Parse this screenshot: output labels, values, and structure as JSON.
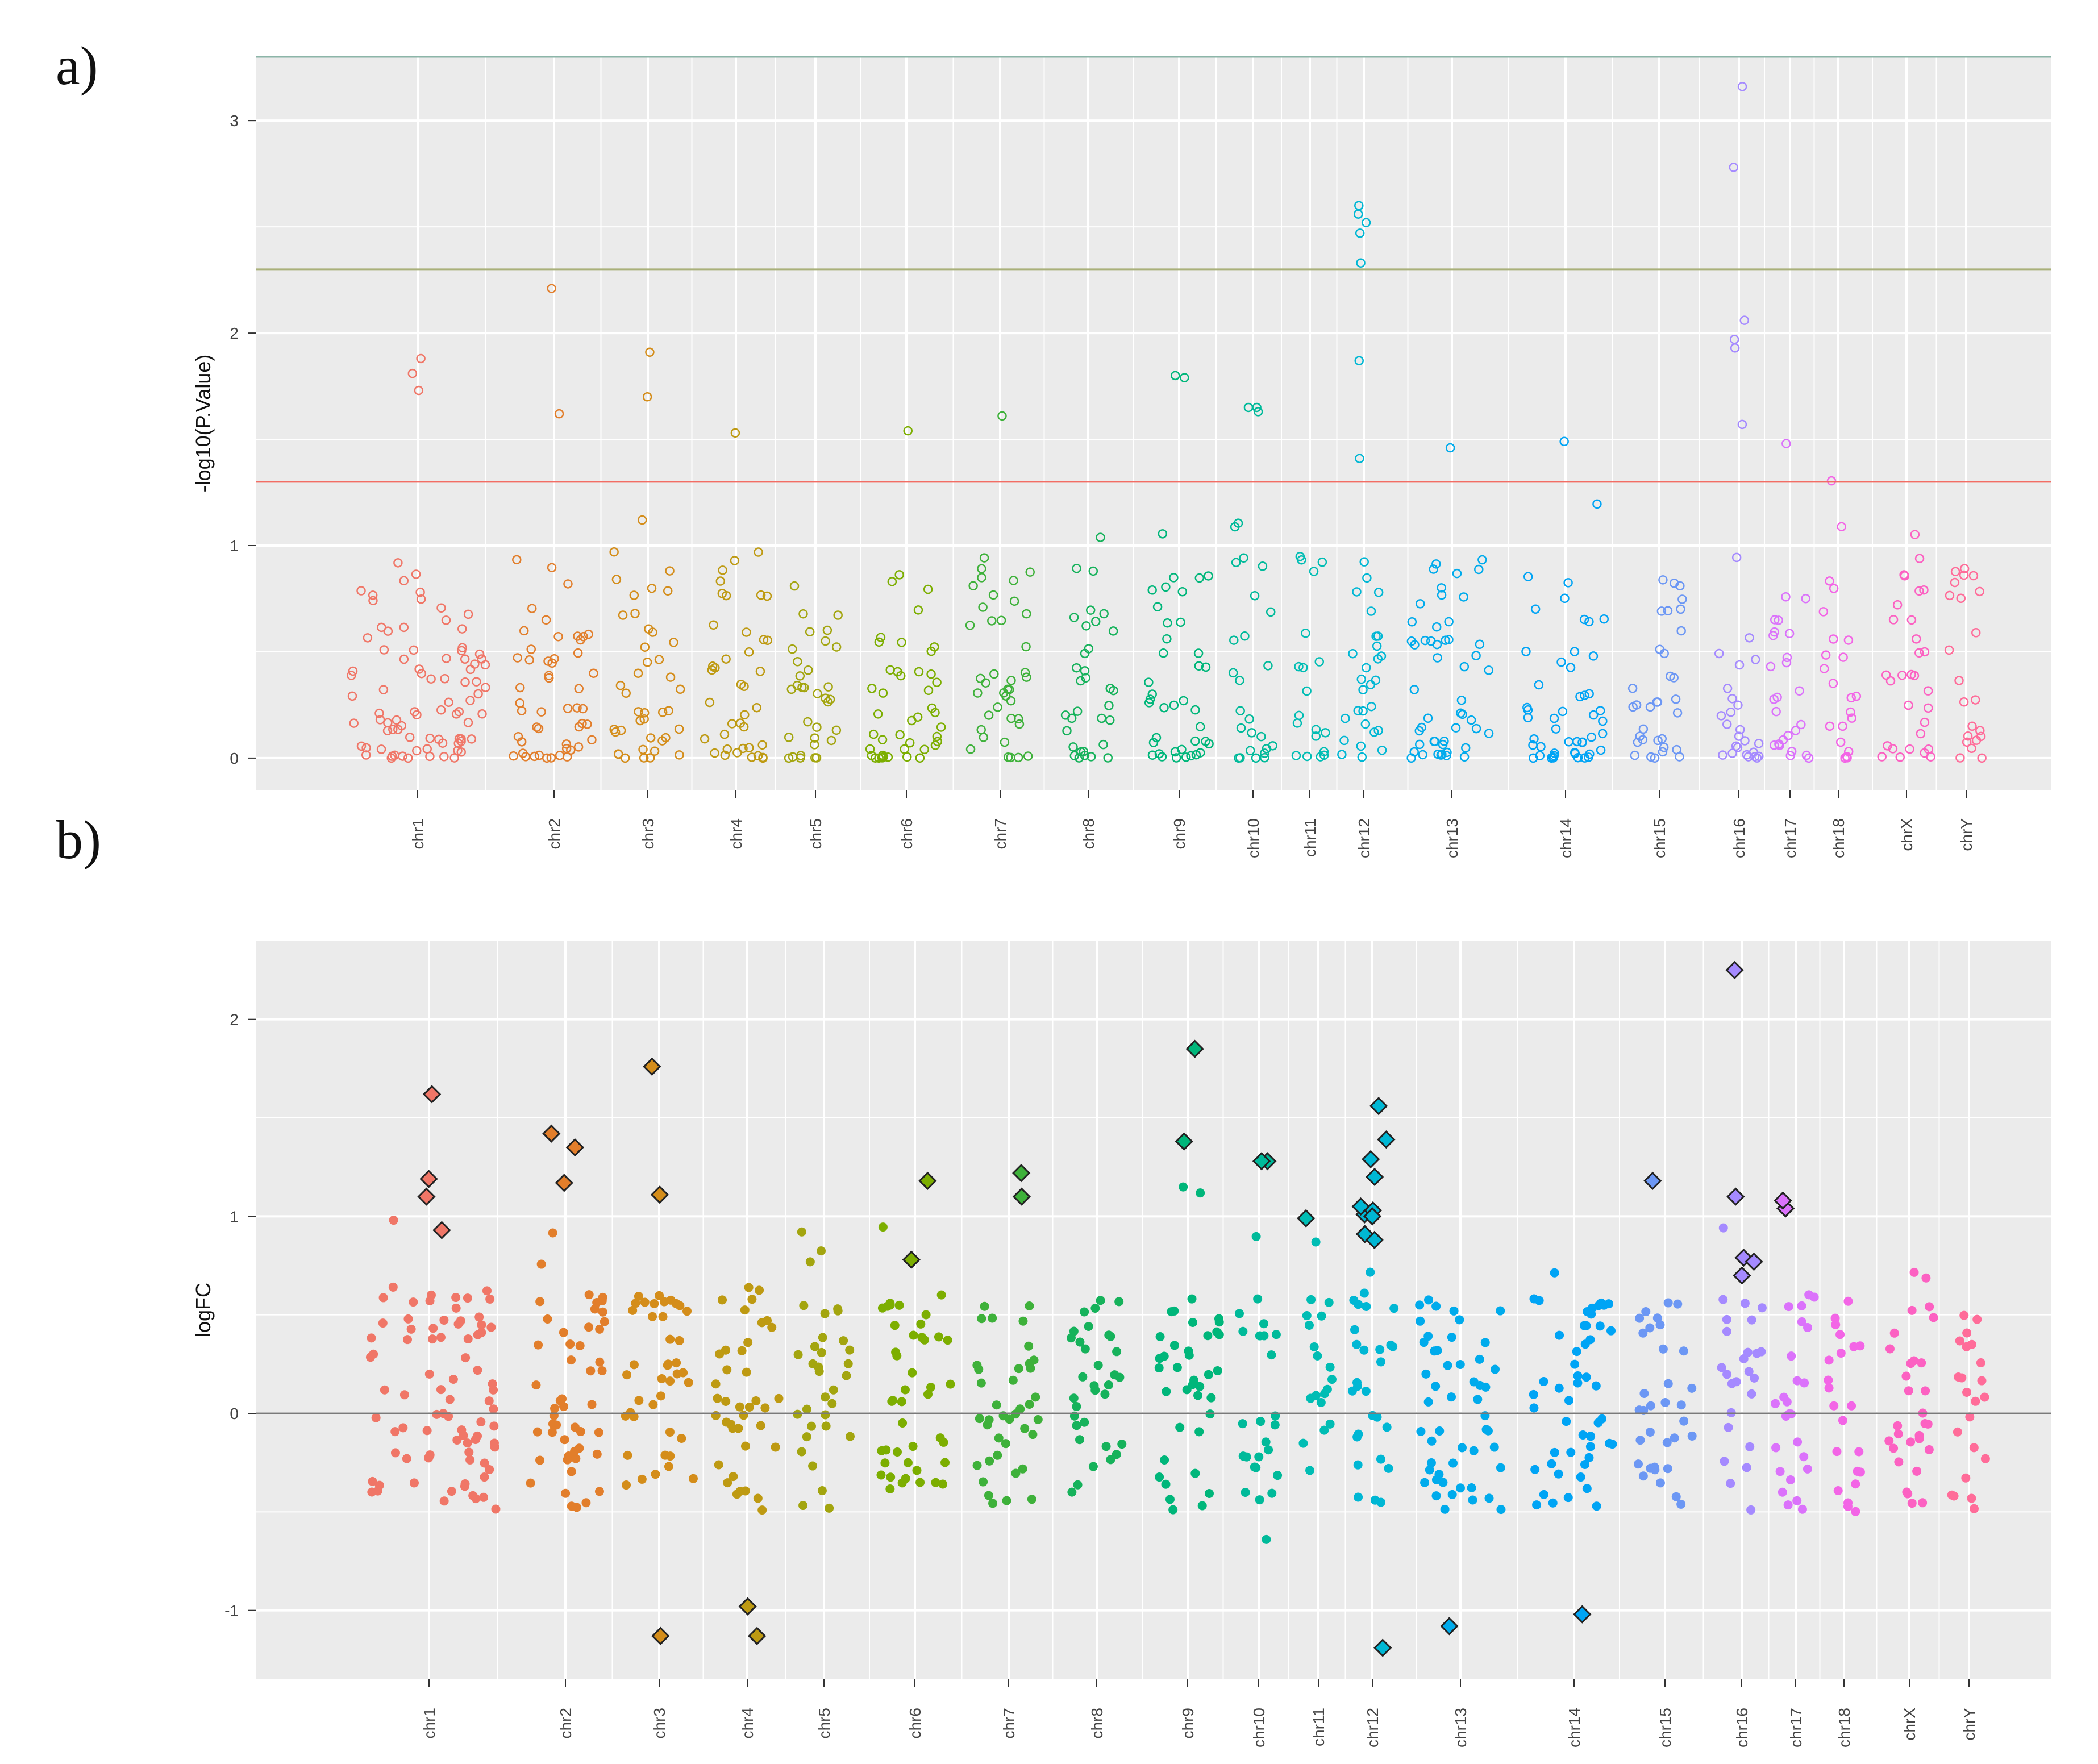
{
  "figure": {
    "panel_a_label": "a)",
    "panel_b_label": "b)"
  },
  "palette": {
    "chr1": "#F07667",
    "chr2": "#E27E2B",
    "chr3": "#D48D1A",
    "chr4": "#BE9A12",
    "chr5": "#A3A50F",
    "chr6": "#7CAE00",
    "chr7": "#3EB13A",
    "chr8": "#16B25B",
    "chr9": "#00B67A",
    "chr10": "#00BA9A",
    "chr11": "#00BDB4",
    "chr12": "#00B7D4",
    "chr13": "#00ABEC",
    "chr14": "#00A4F5",
    "chr15": "#6C97F4",
    "chr16": "#A58AFF",
    "chr17": "#DB72FB",
    "chr18": "#F365E6",
    "chrX": "#FC61C2",
    "chrY": "#FF6C99",
    "panel_background": "#EBEBEB",
    "gridline": "#FFFFFF",
    "threshold_red": "#F26D64",
    "threshold_olive": "#A9B07A",
    "threshold_teal": "#8CB5A8",
    "zero_line": "#7A7A7A"
  },
  "chart_data": [
    {
      "panel": "a)",
      "type": "scatter",
      "marker": "open-circle",
      "ylabel": "-log10(P.Value)",
      "xlabel": "",
      "ylim": [
        -0.15,
        3.3
      ],
      "yticks": [
        "0",
        "1",
        "2",
        "3"
      ],
      "grid": true,
      "legend": "none",
      "chromosomes": [
        "chr1",
        "chr2",
        "chr3",
        "chr4",
        "chr5",
        "chr6",
        "chr7",
        "chr8",
        "chr9",
        "chr10",
        "chr11",
        "chr12",
        "chr13",
        "chr14",
        "chr15",
        "chr16",
        "chr17",
        "chr18",
        "chrX",
        "chrY"
      ],
      "hlines": [
        {
          "y": 1.3,
          "color": "#F26D64"
        },
        {
          "y": 2.3,
          "color": "#A9B07A"
        },
        {
          "y": 3.3,
          "color": "#8CB5A8"
        }
      ],
      "highlight_points": [
        {
          "chr": "chr16",
          "y": 3.16
        },
        {
          "chr": "chr16",
          "y": 2.78
        },
        {
          "chr": "chr16",
          "y": 2.06
        },
        {
          "chr": "chr16",
          "y": 1.97
        },
        {
          "chr": "chr16",
          "y": 1.93
        },
        {
          "chr": "chr16",
          "y": 1.57
        },
        {
          "chr": "chr12",
          "y": 2.6
        },
        {
          "chr": "chr12",
          "y": 2.56
        },
        {
          "chr": "chr12",
          "y": 2.52
        },
        {
          "chr": "chr12",
          "y": 2.47
        },
        {
          "chr": "chr12",
          "y": 2.33
        },
        {
          "chr": "chr12",
          "y": 1.87
        },
        {
          "chr": "chr2",
          "y": 2.21
        },
        {
          "chr": "chr3",
          "y": 1.91
        },
        {
          "chr": "chr1",
          "y": 1.88
        },
        {
          "chr": "chr1",
          "y": 1.81
        },
        {
          "chr": "chr1",
          "y": 1.73
        },
        {
          "chr": "chr9",
          "y": 1.8
        },
        {
          "chr": "chr9",
          "y": 1.79
        },
        {
          "chr": "chr3",
          "y": 1.7
        },
        {
          "chr": "chr10",
          "y": 1.65
        },
        {
          "chr": "chr10",
          "y": 1.65
        },
        {
          "chr": "chr10",
          "y": 1.63
        },
        {
          "chr": "chr2",
          "y": 1.62
        },
        {
          "chr": "chr7",
          "y": 1.61
        },
        {
          "chr": "chr6",
          "y": 1.54
        },
        {
          "chr": "chr4",
          "y": 1.53
        },
        {
          "chr": "chr14",
          "y": 1.49
        },
        {
          "chr": "chr17",
          "y": 1.48
        },
        {
          "chr": "chr13",
          "y": 1.46
        },
        {
          "chr": "chr12",
          "y": 1.41
        }
      ]
    },
    {
      "panel": "b)",
      "type": "scatter",
      "marker": "filled-circle",
      "ylabel": "logFC",
      "xlabel": "",
      "ylim": [
        -1.35,
        2.4
      ],
      "yticks": [
        "-1",
        "0",
        "1",
        "2"
      ],
      "grid": true,
      "legend": "none",
      "chromosomes": [
        "chr1",
        "chr2",
        "chr3",
        "chr4",
        "chr5",
        "chr6",
        "chr7",
        "chr8",
        "chr9",
        "chr10",
        "chr11",
        "chr12",
        "chr13",
        "chr14",
        "chr15",
        "chr16",
        "chr17",
        "chr18",
        "chrX",
        "chrY"
      ],
      "hlines": [
        {
          "y": 0,
          "color": "#7A7A7A"
        }
      ],
      "significant_diamonds": [
        {
          "chr": "chr1",
          "y": 1.19
        },
        {
          "chr": "chr1",
          "y": 1.1
        },
        {
          "chr": "chr1",
          "y": 1.62
        },
        {
          "chr": "chr1",
          "y": 0.93
        },
        {
          "chr": "chr2",
          "y": 1.42
        },
        {
          "chr": "chr2",
          "y": 1.35
        },
        {
          "chr": "chr2",
          "y": 1.17
        },
        {
          "chr": "chr3",
          "y": 1.11
        },
        {
          "chr": "chr3",
          "y": 1.76
        },
        {
          "chr": "chr3",
          "y": -1.13
        },
        {
          "chr": "chr4",
          "y": -1.13
        },
        {
          "chr": "chr4",
          "y": -0.98
        },
        {
          "chr": "chr6",
          "y": 1.18
        },
        {
          "chr": "chr6",
          "y": 0.78
        },
        {
          "chr": "chr7",
          "y": 1.22
        },
        {
          "chr": "chr7",
          "y": 1.1
        },
        {
          "chr": "chr9",
          "y": 1.38
        },
        {
          "chr": "chr9",
          "y": 1.85
        },
        {
          "chr": "chr10",
          "y": 1.28
        },
        {
          "chr": "chr10",
          "y": 1.28
        },
        {
          "chr": "chr11",
          "y": 0.99
        },
        {
          "chr": "chr12",
          "y": 1.01
        },
        {
          "chr": "chr12",
          "y": 1.56
        },
        {
          "chr": "chr12",
          "y": -1.19
        },
        {
          "chr": "chr12",
          "y": 1.39
        },
        {
          "chr": "chr12",
          "y": 1.29
        },
        {
          "chr": "chr12",
          "y": 1.2
        },
        {
          "chr": "chr12",
          "y": 1.05
        },
        {
          "chr": "chr12",
          "y": 1.03
        },
        {
          "chr": "chr12",
          "y": 1.0
        },
        {
          "chr": "chr12",
          "y": 0.91
        },
        {
          "chr": "chr12",
          "y": 0.88
        },
        {
          "chr": "chr13",
          "y": -1.08
        },
        {
          "chr": "chr14",
          "y": -1.02
        },
        {
          "chr": "chr15",
          "y": 1.18
        },
        {
          "chr": "chr16",
          "y": 1.1
        },
        {
          "chr": "chr16",
          "y": 0.79
        },
        {
          "chr": "chr16",
          "y": 0.77
        },
        {
          "chr": "chr16",
          "y": 0.7
        },
        {
          "chr": "chr16",
          "y": 2.25
        },
        {
          "chr": "chr17",
          "y": 1.04
        },
        {
          "chr": "chr17",
          "y": 1.08
        }
      ]
    }
  ]
}
